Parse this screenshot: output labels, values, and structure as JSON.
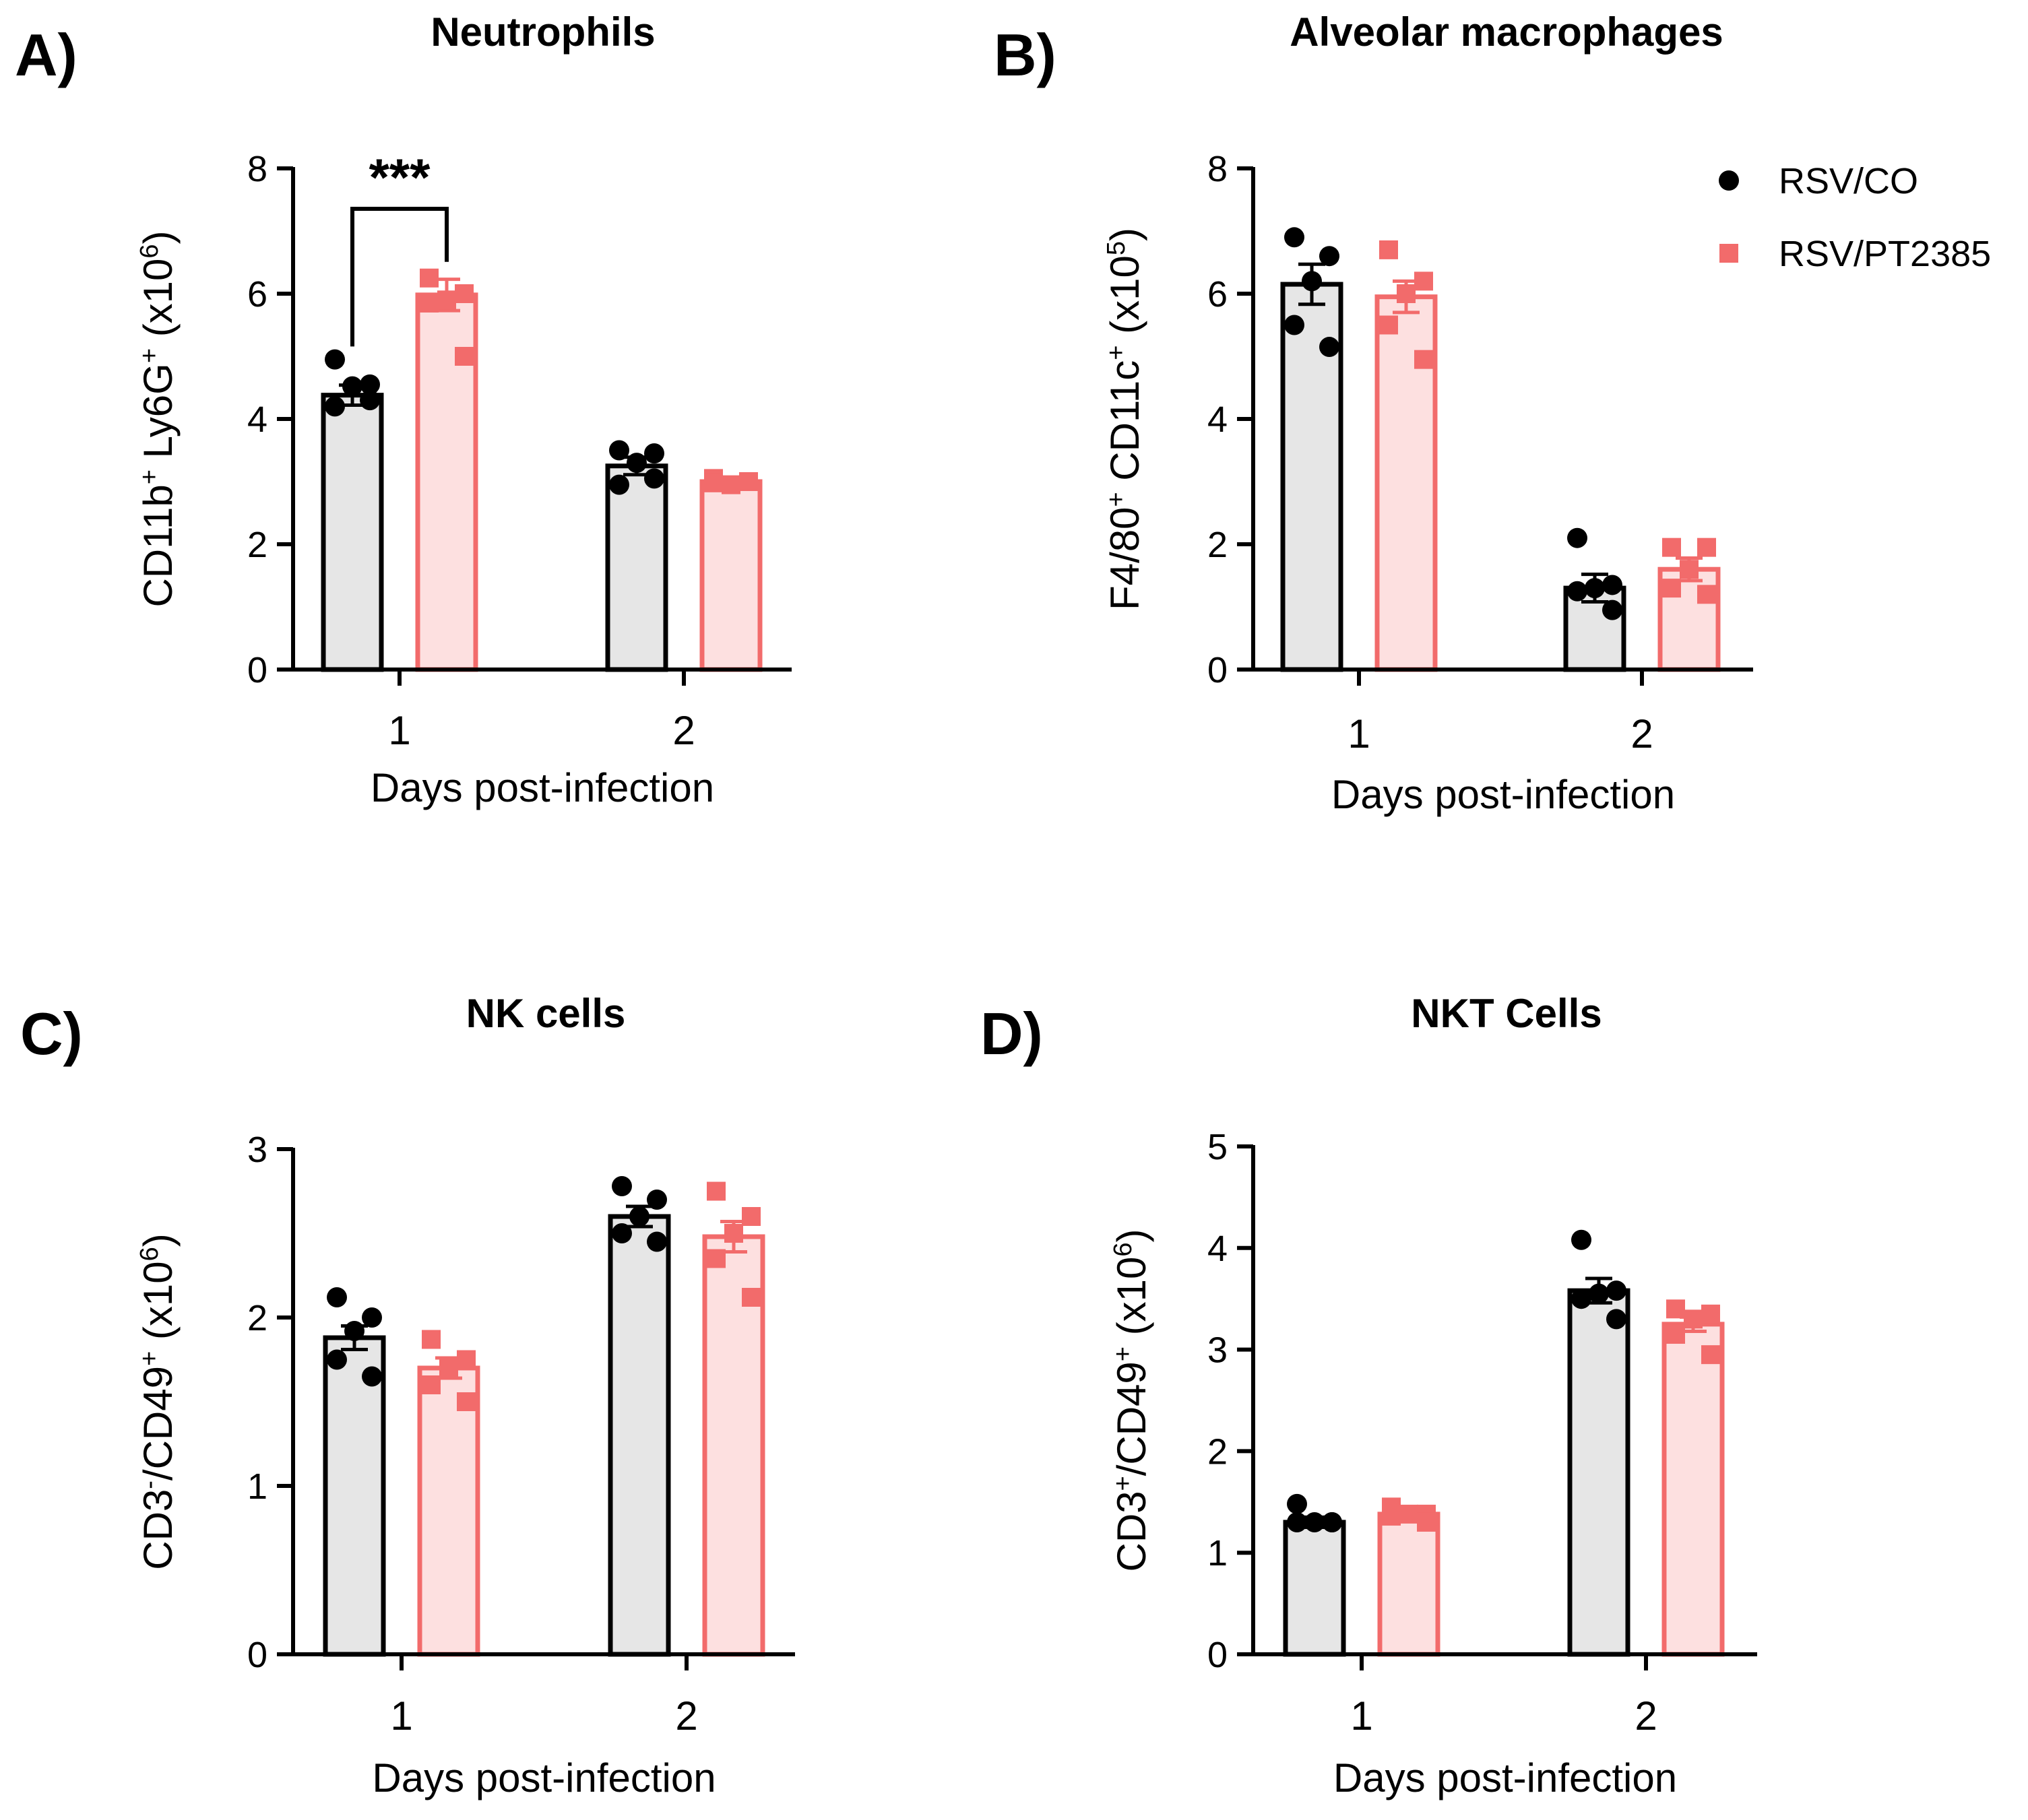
{
  "figure": {
    "legend": {
      "placement": "top-right of panel B",
      "items": [
        {
          "label": "RSV/CO",
          "marker": "circle",
          "color": "#000000"
        },
        {
          "label": "RSV/PT2385",
          "marker": "square",
          "color": "#f26b6b"
        }
      ]
    },
    "colors": {
      "co_bar_fill": "#e6e6e6",
      "co_stroke": "#000000",
      "pt_bar_fill": "#fde0e0",
      "pt_stroke": "#f26b6b"
    }
  },
  "chart_data": [
    {
      "type": "bar",
      "panel": "A)",
      "title": "Neutrophils",
      "xlabel": "Days post-infection",
      "ylabel": {
        "pre": "CD11b",
        "sup1": "+",
        "mid": " Ly6G",
        "sup2": "+",
        "post": " (x10",
        "exp": "6",
        "end": ")"
      },
      "categories": [
        "1",
        "2"
      ],
      "ylim": [
        0,
        8
      ],
      "yticks": [
        0,
        2,
        4,
        6,
        8
      ],
      "significance": {
        "label": "***",
        "between": [
          "RSV/CO day 1",
          "RSV/PT2385 day 1"
        ]
      },
      "series": [
        {
          "name": "RSV/CO",
          "means": [
            4.38,
            3.25
          ],
          "sem": [
            0.16,
            0.14
          ],
          "points": [
            [
              4.95,
              4.55,
              4.52,
              4.2,
              4.3
            ],
            [
              3.5,
              3.45,
              3.3,
              2.95,
              3.05
            ]
          ]
        },
        {
          "name": "RSV/PT2385",
          "means": [
            5.98,
            3.0
          ],
          "sem": [
            0.25,
            0.04
          ],
          "points": [
            [
              6.25,
              6.0,
              5.9,
              5.85,
              5.0
            ],
            [
              3.05,
              3.0,
              2.95,
              2.98,
              3.0
            ]
          ]
        }
      ]
    },
    {
      "type": "bar",
      "panel": "B)",
      "title": "Alveolar macrophages",
      "xlabel": "Days post-infection",
      "ylabel": {
        "pre": "F4/80",
        "sup1": "+",
        "mid": " CD11c",
        "sup2": "+",
        "post": " (x10",
        "exp": "5",
        "end": ")"
      },
      "categories": [
        "1",
        "2"
      ],
      "ylim": [
        0,
        8
      ],
      "yticks": [
        0,
        2,
        4,
        6,
        8
      ],
      "series": [
        {
          "name": "RSV/CO",
          "means": [
            6.15,
            1.3
          ],
          "sem": [
            0.32,
            0.22
          ],
          "points": [
            [
              6.9,
              6.6,
              6.2,
              5.5,
              5.15
            ],
            [
              2.1,
              1.35,
              1.3,
              1.25,
              0.95
            ]
          ]
        },
        {
          "name": "RSV/PT2385",
          "means": [
            5.95,
            1.6
          ],
          "sem": [
            0.25,
            0.18
          ],
          "points": [
            [
              6.7,
              6.2,
              6.0,
              5.5,
              4.95
            ],
            [
              1.95,
              1.95,
              1.6,
              1.3,
              1.2
            ]
          ]
        }
      ]
    },
    {
      "type": "bar",
      "panel": "C)",
      "title": "NK cells",
      "xlabel": "Days post-infection",
      "ylabel": {
        "pre": "CD3",
        "sup1": "-",
        "mid": "/CD49",
        "sup2": "+",
        "post": " (x10",
        "exp": "6",
        "end": ")"
      },
      "categories": [
        "1",
        "2"
      ],
      "ylim": [
        0,
        3
      ],
      "yticks": [
        0,
        1,
        2,
        3
      ],
      "series": [
        {
          "name": "RSV/CO",
          "means": [
            1.88,
            2.6
          ],
          "sem": [
            0.07,
            0.06
          ],
          "points": [
            [
              2.12,
              2.0,
              1.92,
              1.75,
              1.65
            ],
            [
              2.78,
              2.7,
              2.6,
              2.5,
              2.45
            ]
          ]
        },
        {
          "name": "RSV/PT2385",
          "means": [
            1.7,
            2.48
          ],
          "sem": [
            0.06,
            0.09
          ],
          "points": [
            [
              1.87,
              1.75,
              1.7,
              1.6,
              1.5
            ],
            [
              2.75,
              2.6,
              2.5,
              2.35,
              2.12
            ]
          ]
        }
      ]
    },
    {
      "type": "bar",
      "panel": "D)",
      "title": "NKT Cells",
      "xlabel": "Days post-infection",
      "ylabel": {
        "pre": "CD3",
        "sup1": "+",
        "mid": "/CD49",
        "sup2": "+",
        "post": " (x10",
        "exp": "6",
        "end": ")"
      },
      "categories": [
        "1",
        "2"
      ],
      "ylim": [
        0,
        5
      ],
      "yticks": [
        0,
        1,
        2,
        3,
        4,
        5
      ],
      "series": [
        {
          "name": "RSV/CO",
          "means": [
            1.3,
            3.58
          ],
          "sem": [
            0.05,
            0.12
          ],
          "points": [
            [
              1.48,
              1.3,
              1.3,
              1.3,
              1.3
            ],
            [
              4.08,
              3.58,
              3.55,
              3.5,
              3.3
            ]
          ]
        },
        {
          "name": "RSV/PT2385",
          "means": [
            1.38,
            3.25
          ],
          "sem": [
            0.03,
            0.07
          ],
          "points": [
            [
              1.45,
              1.38,
              1.38,
              1.36,
              1.3
            ],
            [
              3.4,
              3.35,
              3.3,
              3.15,
              2.95
            ]
          ]
        }
      ]
    }
  ]
}
